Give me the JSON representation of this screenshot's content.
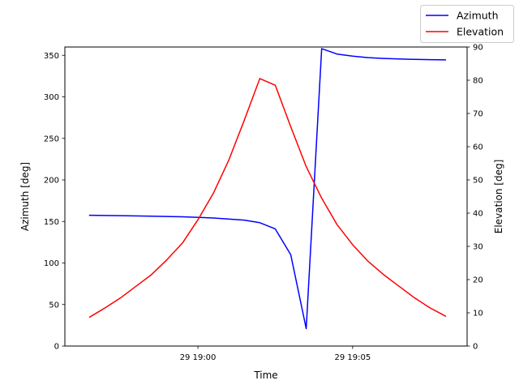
{
  "chart_data": {
    "type": "line",
    "xlabel": "Time",
    "ylabel_left": "Azimuth [deg]",
    "ylabel_right": "Elevation [deg]",
    "x_unit": "minutes after 29 18:56:00",
    "x_range": [
      -0.3,
      12.7
    ],
    "ylim_left": [
      0,
      360
    ],
    "ylim_right": [
      0,
      90
    ],
    "x_ticks": [
      {
        "value": 4,
        "label": "29 19:00"
      },
      {
        "value": 9,
        "label": "29 19:05"
      }
    ],
    "y_ticks_left": [
      0,
      50,
      100,
      150,
      200,
      250,
      300,
      350
    ],
    "y_ticks_right": [
      0,
      10,
      20,
      30,
      40,
      50,
      60,
      70,
      80,
      90
    ],
    "legend_position": "top-right",
    "grid": false,
    "series": [
      {
        "name": "Azimuth",
        "axis": "left",
        "color": "#0000ff",
        "x": [
          0.5,
          1.5,
          2.5,
          3.5,
          4.5,
          5.5,
          6.0,
          6.5,
          7.0,
          7.5,
          8.0,
          8.5,
          9.0,
          9.5,
          10.0,
          10.5,
          11.0,
          11.5,
          12.0
        ],
        "y": [
          157.4,
          157.0,
          156.4,
          155.6,
          154.2,
          151.6,
          148.5,
          141.0,
          110.0,
          21.0,
          358.0,
          351.5,
          349.0,
          347.2,
          346.2,
          345.6,
          345.1,
          344.8,
          344.5
        ]
      },
      {
        "name": "Elevation",
        "axis": "right",
        "color": "#ff0000",
        "x": [
          0.5,
          1.0,
          1.5,
          2.0,
          2.5,
          3.0,
          3.5,
          4.0,
          4.5,
          5.0,
          5.5,
          6.0,
          6.5,
          7.0,
          7.5,
          8.0,
          8.5,
          9.0,
          9.5,
          10.0,
          10.5,
          11.0,
          11.5,
          12.0
        ],
        "y": [
          8.7,
          11.5,
          14.5,
          18.0,
          21.5,
          26.0,
          31.0,
          38.0,
          46.0,
          56.0,
          68.0,
          80.5,
          78.5,
          66.0,
          54.0,
          44.5,
          36.5,
          30.5,
          25.5,
          21.5,
          18.0,
          14.5,
          11.5,
          9.0
        ]
      }
    ]
  }
}
